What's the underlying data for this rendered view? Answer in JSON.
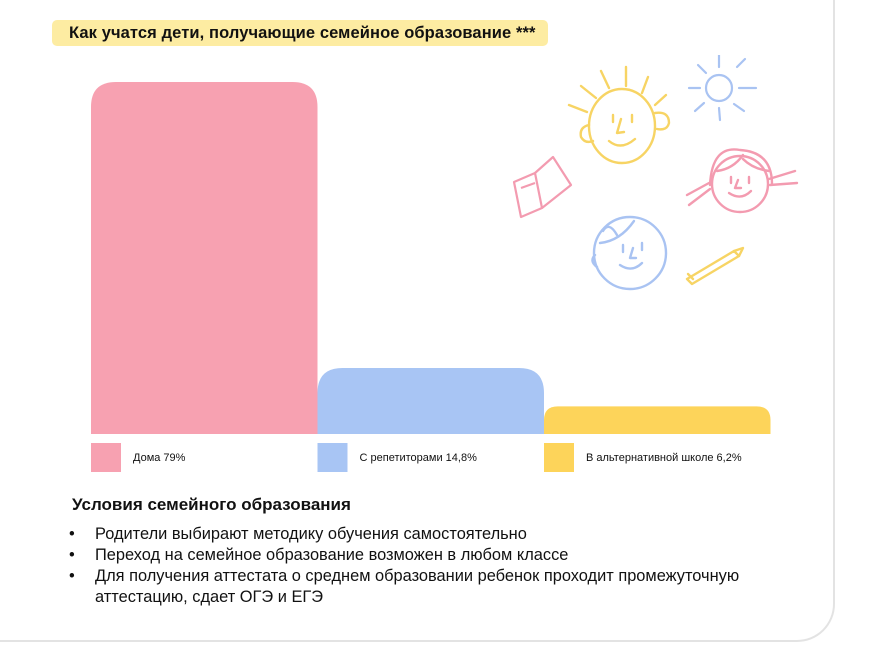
{
  "chart_data": {
    "type": "bar",
    "title": "Как учатся дети, получающие семейное образование ***",
    "categories": [
      "Дома 79%",
      "С репетиторами 14,8%",
      "В альтернативной школе 6,2%"
    ],
    "values": [
      79,
      14.8,
      6.2
    ],
    "colors": [
      "#f7a1b1",
      "#a8c5f4",
      "#fdd45a"
    ],
    "title_bg": "#fdeca2",
    "grid": false,
    "legend_position": "bottom"
  },
  "conditions": {
    "title": "Условия семейного образования",
    "items": [
      "Родители выбирают методику обучения самостоятельно",
      "Переход на семейное образование возможен в любом классе",
      "Для получения аттестата о среднем образовании ребенок проходит промежуточную аттестацию, сдает ОГЭ и ЕГЭ"
    ]
  },
  "illustration": {
    "icons": [
      "sun-face-icon",
      "small-sun-icon",
      "girl-face-icon",
      "open-book-icon",
      "boy-face-icon",
      "pencil-icon"
    ]
  }
}
